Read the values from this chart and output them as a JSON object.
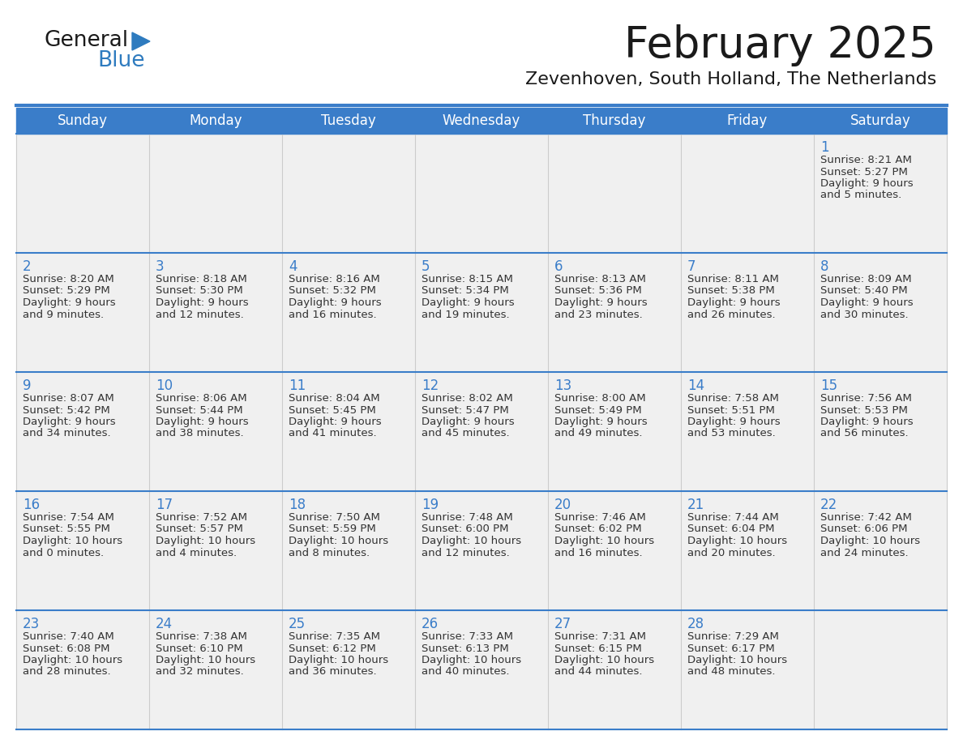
{
  "title": "February 2025",
  "subtitle": "Zevenhoven, South Holland, The Netherlands",
  "days_of_week": [
    "Sunday",
    "Monday",
    "Tuesday",
    "Wednesday",
    "Thursday",
    "Friday",
    "Saturday"
  ],
  "header_bg": "#3A7DC9",
  "header_text": "#FFFFFF",
  "cell_bg": "#F0F0F0",
  "grid_line_color": "#3A7DC9",
  "cell_divider_color": "#CCCCCC",
  "title_color": "#1a1a1a",
  "subtitle_color": "#1a1a1a",
  "cell_text_color": "#333333",
  "day_num_color": "#3A7DC9",
  "logo_general_color": "#1a1a1a",
  "logo_blue_color": "#2E7BBF",
  "weeks": [
    [
      {
        "day": null
      },
      {
        "day": null
      },
      {
        "day": null
      },
      {
        "day": null
      },
      {
        "day": null
      },
      {
        "day": null
      },
      {
        "day": 1,
        "sunrise": "8:21 AM",
        "sunset": "5:27 PM",
        "daylight": "9 hours and 5 minutes."
      }
    ],
    [
      {
        "day": 2,
        "sunrise": "8:20 AM",
        "sunset": "5:29 PM",
        "daylight": "9 hours and 9 minutes."
      },
      {
        "day": 3,
        "sunrise": "8:18 AM",
        "sunset": "5:30 PM",
        "daylight": "9 hours and 12 minutes."
      },
      {
        "day": 4,
        "sunrise": "8:16 AM",
        "sunset": "5:32 PM",
        "daylight": "9 hours and 16 minutes."
      },
      {
        "day": 5,
        "sunrise": "8:15 AM",
        "sunset": "5:34 PM",
        "daylight": "9 hours and 19 minutes."
      },
      {
        "day": 6,
        "sunrise": "8:13 AM",
        "sunset": "5:36 PM",
        "daylight": "9 hours and 23 minutes."
      },
      {
        "day": 7,
        "sunrise": "8:11 AM",
        "sunset": "5:38 PM",
        "daylight": "9 hours and 26 minutes."
      },
      {
        "day": 8,
        "sunrise": "8:09 AM",
        "sunset": "5:40 PM",
        "daylight": "9 hours and 30 minutes."
      }
    ],
    [
      {
        "day": 9,
        "sunrise": "8:07 AM",
        "sunset": "5:42 PM",
        "daylight": "9 hours and 34 minutes."
      },
      {
        "day": 10,
        "sunrise": "8:06 AM",
        "sunset": "5:44 PM",
        "daylight": "9 hours and 38 minutes."
      },
      {
        "day": 11,
        "sunrise": "8:04 AM",
        "sunset": "5:45 PM",
        "daylight": "9 hours and 41 minutes."
      },
      {
        "day": 12,
        "sunrise": "8:02 AM",
        "sunset": "5:47 PM",
        "daylight": "9 hours and 45 minutes."
      },
      {
        "day": 13,
        "sunrise": "8:00 AM",
        "sunset": "5:49 PM",
        "daylight": "9 hours and 49 minutes."
      },
      {
        "day": 14,
        "sunrise": "7:58 AM",
        "sunset": "5:51 PM",
        "daylight": "9 hours and 53 minutes."
      },
      {
        "day": 15,
        "sunrise": "7:56 AM",
        "sunset": "5:53 PM",
        "daylight": "9 hours and 56 minutes."
      }
    ],
    [
      {
        "day": 16,
        "sunrise": "7:54 AM",
        "sunset": "5:55 PM",
        "daylight": "10 hours and 0 minutes."
      },
      {
        "day": 17,
        "sunrise": "7:52 AM",
        "sunset": "5:57 PM",
        "daylight": "10 hours and 4 minutes."
      },
      {
        "day": 18,
        "sunrise": "7:50 AM",
        "sunset": "5:59 PM",
        "daylight": "10 hours and 8 minutes."
      },
      {
        "day": 19,
        "sunrise": "7:48 AM",
        "sunset": "6:00 PM",
        "daylight": "10 hours and 12 minutes."
      },
      {
        "day": 20,
        "sunrise": "7:46 AM",
        "sunset": "6:02 PM",
        "daylight": "10 hours and 16 minutes."
      },
      {
        "day": 21,
        "sunrise": "7:44 AM",
        "sunset": "6:04 PM",
        "daylight": "10 hours and 20 minutes."
      },
      {
        "day": 22,
        "sunrise": "7:42 AM",
        "sunset": "6:06 PM",
        "daylight": "10 hours and 24 minutes."
      }
    ],
    [
      {
        "day": 23,
        "sunrise": "7:40 AM",
        "sunset": "6:08 PM",
        "daylight": "10 hours and 28 minutes."
      },
      {
        "day": 24,
        "sunrise": "7:38 AM",
        "sunset": "6:10 PM",
        "daylight": "10 hours and 32 minutes."
      },
      {
        "day": 25,
        "sunrise": "7:35 AM",
        "sunset": "6:12 PM",
        "daylight": "10 hours and 36 minutes."
      },
      {
        "day": 26,
        "sunrise": "7:33 AM",
        "sunset": "6:13 PM",
        "daylight": "10 hours and 40 minutes."
      },
      {
        "day": 27,
        "sunrise": "7:31 AM",
        "sunset": "6:15 PM",
        "daylight": "10 hours and 44 minutes."
      },
      {
        "day": 28,
        "sunrise": "7:29 AM",
        "sunset": "6:17 PM",
        "daylight": "10 hours and 48 minutes."
      },
      {
        "day": null
      }
    ]
  ]
}
